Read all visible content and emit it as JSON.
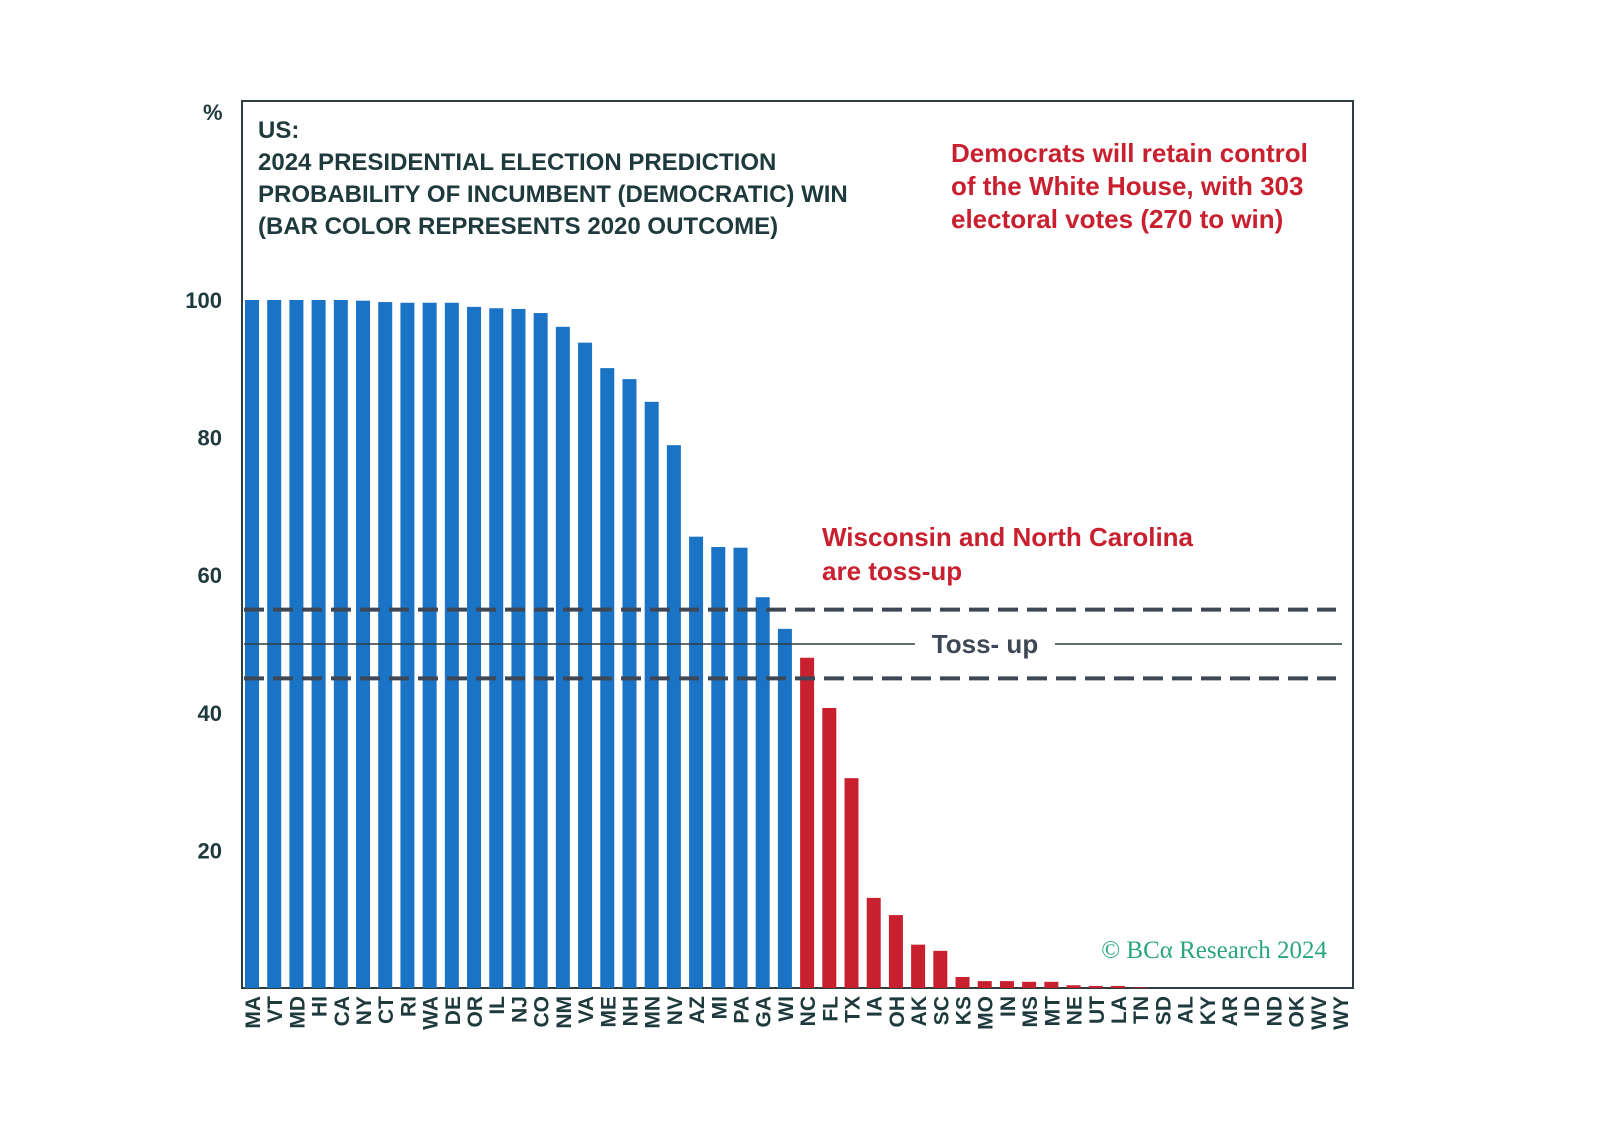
{
  "chart_data": {
    "type": "bar",
    "title_lines": [
      "US:",
      "2024 PRESIDENTIAL ELECTION PREDICTION",
      "PROBABILITY OF INCUMBENT (DEMOCRATIC) WIN",
      "(BAR COLOR REPRESENTS 2020 OUTCOME)"
    ],
    "ylabel": "%",
    "ylim": [
      0,
      129
    ],
    "yticks": [
      20,
      40,
      60,
      80,
      100
    ],
    "categories": [
      "MA",
      "VT",
      "MD",
      "HI",
      "CA",
      "NY",
      "CT",
      "RI",
      "WA",
      "DE",
      "OR",
      "IL",
      "NJ",
      "CO",
      "NM",
      "VA",
      "ME",
      "NH",
      "MN",
      "NV",
      "AZ",
      "MI",
      "PA",
      "GA",
      "WI",
      "NC",
      "FL",
      "TX",
      "IA",
      "OH",
      "AK",
      "SC",
      "KS",
      "MO",
      "IN",
      "MS",
      "MT",
      "NE",
      "UT",
      "LA",
      "TN",
      "SD",
      "AL",
      "KY",
      "AR",
      "ID",
      "ND",
      "OK",
      "WV",
      "WY"
    ],
    "values": [
      100,
      100,
      100,
      100,
      100,
      99.9,
      99.7,
      99.6,
      99.6,
      99.6,
      99,
      98.8,
      98.7,
      98.1,
      96.1,
      93.8,
      90.1,
      88.5,
      85.2,
      78.9,
      65.6,
      64.1,
      64,
      56.8,
      52.2,
      48,
      40.7,
      30.5,
      13.1,
      10.6,
      6.3,
      5.4,
      1.6,
      1,
      1,
      0.9,
      0.9,
      0.4,
      0.3,
      0.3,
      0.1,
      0,
      0,
      0,
      0,
      0,
      0,
      0,
      0,
      0
    ],
    "outcome_2020": [
      "D",
      "D",
      "D",
      "D",
      "D",
      "D",
      "D",
      "D",
      "D",
      "D",
      "D",
      "D",
      "D",
      "D",
      "D",
      "D",
      "D",
      "D",
      "D",
      "D",
      "D",
      "D",
      "D",
      "D",
      "D",
      "R",
      "R",
      "R",
      "R",
      "R",
      "R",
      "R",
      "R",
      "R",
      "R",
      "R",
      "R",
      "R",
      "R",
      "R",
      "R",
      "R",
      "R",
      "R",
      "R",
      "R",
      "R",
      "R",
      "R",
      "R"
    ],
    "colors": {
      "D": "#1a73c4",
      "R": "#c8202e",
      "annotation": "#c8202e",
      "copyright": "#2aa67c",
      "reference": "#3e4756"
    },
    "reference_lines": [
      {
        "value": 55,
        "style": "dashed"
      },
      {
        "value": 50,
        "style": "solid",
        "label": "Toss- up"
      },
      {
        "value": 45,
        "style": "dashed"
      }
    ],
    "annotations": [
      [
        "Democrats will retain control",
        "of the White House, with 303",
        "electoral votes (270 to win)"
      ],
      [
        "Wisconsin and North Carolina",
        "are toss-up"
      ]
    ],
    "copyright": "© BCα Research 2024"
  }
}
